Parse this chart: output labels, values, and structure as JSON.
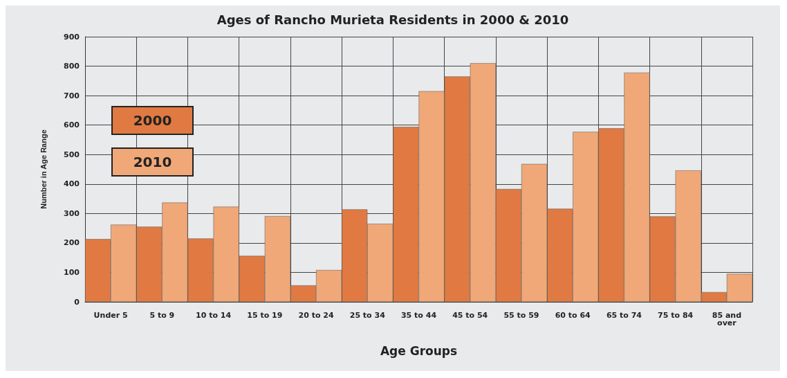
{
  "chart_data": {
    "type": "bar",
    "title": "Ages of Rancho Murieta Residents in 2000 & 2010",
    "xlabel": "Age Groups",
    "ylabel": "Number in Age Range",
    "categories": [
      "Under 5",
      "5 to 9",
      "10 to 14",
      "15 to 19",
      "20 to 24",
      "25 to 34",
      "35 to 44",
      "45 to 54",
      "55 to 59",
      "60 to 64",
      "65 to 74",
      "75 to 84",
      "85 and\nover"
    ],
    "series": [
      {
        "name": "2000",
        "color": "#e07a42",
        "values": [
          213,
          255,
          215,
          156,
          56,
          314,
          594,
          765,
          383,
          316,
          589,
          290,
          33
        ]
      },
      {
        "name": "2010",
        "color": "#f0a878",
        "values": [
          262,
          337,
          323,
          291,
          108,
          265,
          715,
          810,
          468,
          577,
          778,
          446,
          95
        ]
      }
    ],
    "ylim": [
      0,
      900
    ],
    "yticks": [
      0,
      100,
      200,
      300,
      400,
      500,
      600,
      700,
      800,
      900
    ],
    "grid": true,
    "legend": "top left"
  }
}
